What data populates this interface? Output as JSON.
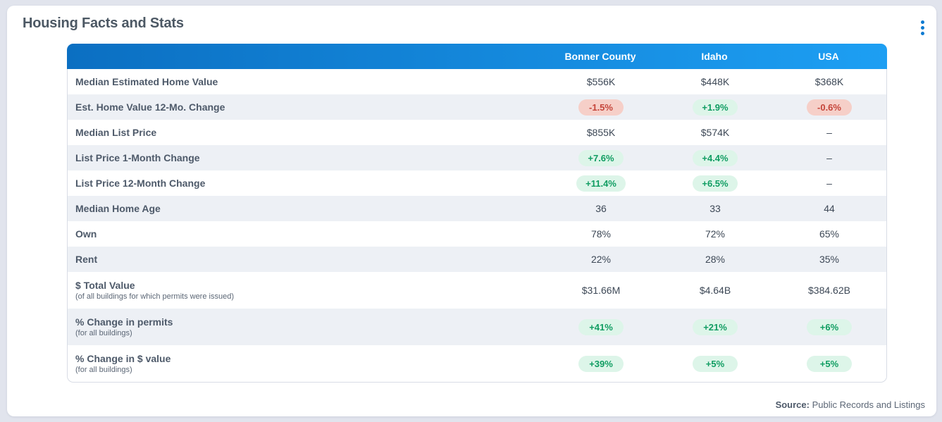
{
  "title": "Housing Facts and Stats",
  "table": {
    "columns": [
      "Bonner County",
      "Idaho",
      "USA"
    ],
    "rows": [
      {
        "label": "Median Estimated Home Value",
        "values": [
          {
            "text": "$556K",
            "style": "plain"
          },
          {
            "text": "$448K",
            "style": "plain"
          },
          {
            "text": "$368K",
            "style": "plain"
          }
        ]
      },
      {
        "label": "Est. Home Value 12-Mo. Change",
        "values": [
          {
            "text": "-1.5%",
            "style": "neg"
          },
          {
            "text": "+1.9%",
            "style": "pos"
          },
          {
            "text": "-0.6%",
            "style": "neg"
          }
        ]
      },
      {
        "label": "Median List Price",
        "values": [
          {
            "text": "$855K",
            "style": "plain"
          },
          {
            "text": "$574K",
            "style": "plain"
          },
          {
            "text": "–",
            "style": "plain"
          }
        ]
      },
      {
        "label": "List Price 1-Month Change",
        "values": [
          {
            "text": "+7.6%",
            "style": "pos"
          },
          {
            "text": "+4.4%",
            "style": "pos"
          },
          {
            "text": "–",
            "style": "plain"
          }
        ]
      },
      {
        "label": "List Price 12-Month Change",
        "values": [
          {
            "text": "+11.4%",
            "style": "pos"
          },
          {
            "text": "+6.5%",
            "style": "pos"
          },
          {
            "text": "–",
            "style": "plain"
          }
        ]
      },
      {
        "label": "Median Home Age",
        "values": [
          {
            "text": "36",
            "style": "plain"
          },
          {
            "text": "33",
            "style": "plain"
          },
          {
            "text": "44",
            "style": "plain"
          }
        ]
      },
      {
        "label": "Own",
        "values": [
          {
            "text": "78%",
            "style": "plain"
          },
          {
            "text": "72%",
            "style": "plain"
          },
          {
            "text": "65%",
            "style": "plain"
          }
        ]
      },
      {
        "label": "Rent",
        "values": [
          {
            "text": "22%",
            "style": "plain"
          },
          {
            "text": "28%",
            "style": "plain"
          },
          {
            "text": "35%",
            "style": "plain"
          }
        ]
      },
      {
        "label": "$ Total Value",
        "sublabel": "(of all buildings for which permits were issued)",
        "values": [
          {
            "text": "$31.66M",
            "style": "plain"
          },
          {
            "text": "$4.64B",
            "style": "plain"
          },
          {
            "text": "$384.62B",
            "style": "plain"
          }
        ]
      },
      {
        "label": "% Change in permits",
        "sublabel": "(for all buildings)",
        "values": [
          {
            "text": "+41%",
            "style": "pos"
          },
          {
            "text": "+21%",
            "style": "pos"
          },
          {
            "text": "+6%",
            "style": "pos"
          }
        ]
      },
      {
        "label": "% Change in $ value",
        "sublabel": "(for all buildings)",
        "values": [
          {
            "text": "+39%",
            "style": "pos"
          },
          {
            "text": "+5%",
            "style": "pos"
          },
          {
            "text": "+5%",
            "style": "pos"
          }
        ]
      }
    ]
  },
  "source": {
    "label": "Source:",
    "text": " Public Records and Listings"
  },
  "icons": {
    "menu": "kebab-menu-icon"
  },
  "colors": {
    "page_bg": "#e1e4ed",
    "title_color": "#4c5864",
    "accent_blue": "#0b7ad1",
    "header_blue_left": "#0b6fc2",
    "header_blue_right": "#1d9ff3",
    "row_alt_bg": "#edf0f5",
    "table_border": "#d8dce5",
    "label_color": "#4e5a6a",
    "sublabel_color": "#5c6776",
    "value_color": "#3d4856",
    "pos_bg": "#ddf5e9",
    "pos_text": "#109d62",
    "neg_bg": "#f6cfc8",
    "neg_text": "#c5453a"
  }
}
